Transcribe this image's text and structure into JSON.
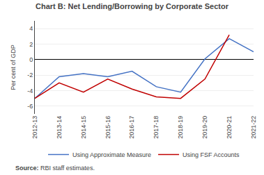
{
  "chart_data": {
    "type": "line",
    "title": "Chart B: Net Lending/Borrowing by Corporate Sector",
    "ylabel": "Per cent of GDP",
    "categories": [
      "2012-13",
      "2013-14",
      "2014-15",
      "2015-16",
      "2016-17",
      "2017-18",
      "2018-19",
      "2019-20",
      "2020-21",
      "2021-22"
    ],
    "series": [
      {
        "name": "Using Approximate Measure",
        "color": "#4472C4",
        "values": [
          -5.0,
          -2.2,
          -1.8,
          -2.2,
          -1.5,
          -3.5,
          -4.2,
          0.1,
          2.7,
          1.0
        ]
      },
      {
        "name": "Using FSF Accounts",
        "color": "#C00000",
        "values": [
          -5.0,
          -3.0,
          -4.2,
          -2.5,
          -3.8,
          -4.8,
          -5.0,
          -2.5,
          3.2,
          null
        ]
      }
    ],
    "ylim": [
      -7,
      5
    ],
    "yticks": [
      -6,
      -4,
      -2,
      0,
      2,
      4
    ],
    "grid": true,
    "legend": "bottom",
    "annotations": [
      "Source:",
      "RBI staff estimates."
    ]
  }
}
